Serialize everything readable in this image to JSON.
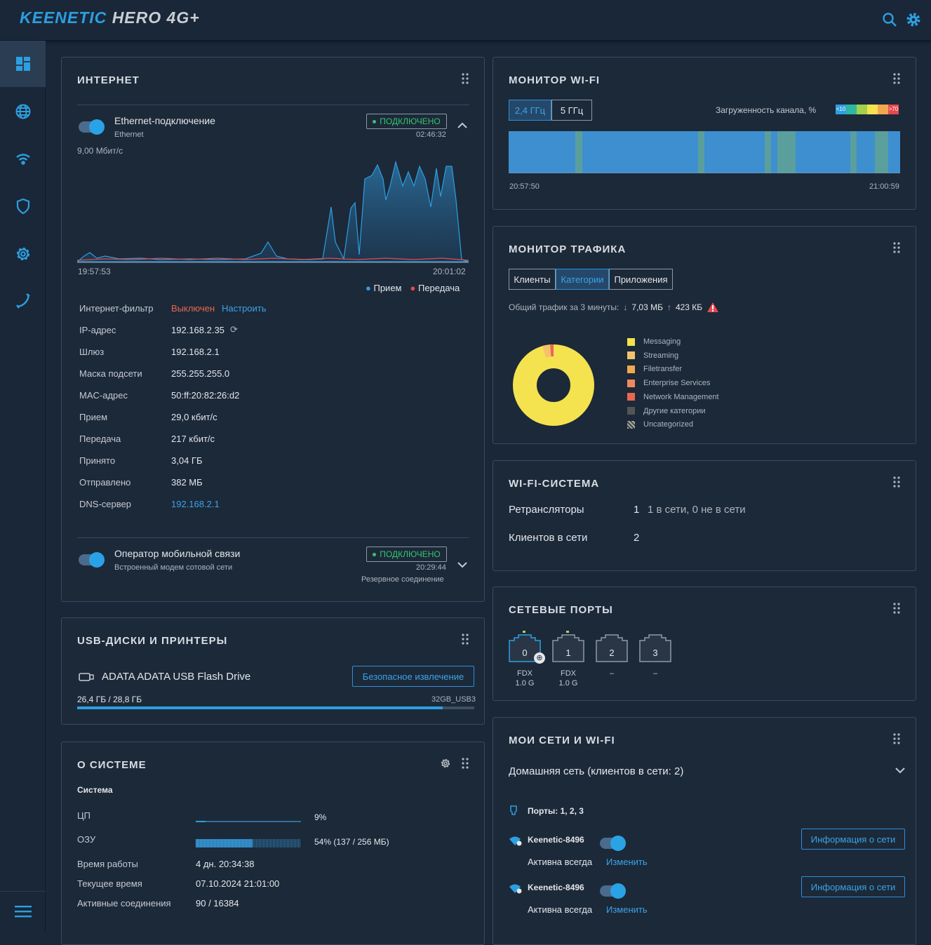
{
  "header": {
    "logo_a": "KEENETIC",
    "logo_b": "HERO 4G+",
    "icons": [
      "search-icon",
      "gear-icon"
    ]
  },
  "sidebar": {
    "items": [
      "dashboard-icon",
      "globe-icon",
      "wifi-icon",
      "shield-icon",
      "settings-icon",
      "phone-icon"
    ],
    "bottom": "menu-icon"
  },
  "internet": {
    "title": "ИНТЕРНЕТ",
    "eth": {
      "name": "Ethernet-подключение",
      "sub": "Ethernet",
      "status": "ПОДКЛЮЧЕНО",
      "uptime": "02:46:32",
      "speed": "9,00 Мбит/с",
      "t_start": "19:57:53",
      "t_end": "20:01:02",
      "legend_rx": "Прием",
      "legend_tx": "Передача"
    },
    "rows": [
      {
        "label": "Интернет-фильтр",
        "value": "Выключен",
        "link": "Настроить"
      },
      {
        "label": "IP-адрес",
        "value": "192.168.2.35"
      },
      {
        "label": "Шлюз",
        "value": "192.168.2.1"
      },
      {
        "label": "Маска подсети",
        "value": "255.255.255.0"
      },
      {
        "label": "MAC-адрес",
        "value": "50:ff:20:82:26:d2"
      },
      {
        "label": "Прием",
        "value": "29,0 кбит/с"
      },
      {
        "label": "Передача",
        "value": "217 кбит/с"
      },
      {
        "label": "Принято",
        "value": "3,04 ГБ"
      },
      {
        "label": "Отправлено",
        "value": "382 МБ"
      },
      {
        "label": "DNS-сервер",
        "value": "192.168.2.1"
      }
    ],
    "mobile": {
      "name": "Оператор мобильной связи",
      "sub": "Встроенный модем сотовой сети",
      "status": "ПОДКЛЮЧЕНО",
      "uptime": "20:29:44",
      "note": "Резервное соединение"
    }
  },
  "usb": {
    "title": "USB-ДИСКИ И ПРИНТЕРЫ",
    "device": "ADATA ADATA USB Flash Drive",
    "eject": "Безопасное извлечение",
    "usage": "26,4 ГБ / 28,8 ГБ",
    "label": "32GB_USB3",
    "fill": 0.92
  },
  "system": {
    "title": "О СИСТЕМЕ",
    "section": "Система",
    "cpu_label": "ЦП",
    "cpu": "9%",
    "cpu_fill": 0.09,
    "ram_label": "ОЗУ",
    "ram": "54% (137 / 256 МБ)",
    "ram_fill": 0.54,
    "uptime_label": "Время работы",
    "uptime": "4 дн. 20:34:38",
    "time_label": "Текущее время",
    "time": "07.10.2024 21:01:00",
    "conn_label": "Активные соединения",
    "conn": "90 / 16384"
  },
  "wifimon": {
    "title": "МОНИТОР WI-FI",
    "tab1": "2,4 ГГц",
    "tab2": "5 ГГц",
    "load_label": "Загруженность канала, %",
    "low": "<10",
    "high": ">70",
    "t_start": "20:57:50",
    "t_end": "21:00:59"
  },
  "traffic": {
    "title": "МОНИТОР ТРАФИКА",
    "tabs": [
      "Клиенты",
      "Категории",
      "Приложения"
    ],
    "total_label": "Общий трафик за 3 минуты:",
    "down": "7,03 МБ",
    "up": "423 КБ",
    "legend": [
      "Messaging",
      "Streaming",
      "Filetransfer",
      "Enterprise Services",
      "Network Management",
      "Другие категории",
      "Uncategorized"
    ],
    "colors": [
      "#f5e24f",
      "#f5c26b",
      "#f0a94f",
      "#ef8a5c",
      "#e9674f",
      "#555555",
      "#999999"
    ]
  },
  "wifisys": {
    "title": "WI-FI-СИСТЕМА",
    "rep_label": "Ретрансляторы",
    "rep_count": "1",
    "rep_status": "1 в сети, 0 не в сети",
    "cl_label": "Клиентов в сети",
    "cl_count": "2"
  },
  "ports": {
    "title": "СЕТЕВЫЕ ПОРТЫ",
    "items": [
      {
        "n": "0",
        "d": "FDX",
        "s": "1.0 G"
      },
      {
        "n": "1",
        "d": "FDX",
        "s": "1.0 G"
      },
      {
        "n": "2",
        "d": "–",
        "s": ""
      },
      {
        "n": "3",
        "d": "–",
        "s": ""
      }
    ]
  },
  "networks": {
    "title": "МОИ СЕТИ И WI-FI",
    "home": "Домашняя сеть (клиентов в сети: 2)",
    "ports": "Порты: 1, 2, 3",
    "wifi": [
      {
        "ssid": "Keenetic-8496",
        "mode": "Активна всегда",
        "edit": "Изменить",
        "info": "Информация о сети"
      },
      {
        "ssid": "Keenetic-8496",
        "mode": "Активна всегда",
        "edit": "Изменить",
        "info": "Информация о сети"
      }
    ]
  }
}
